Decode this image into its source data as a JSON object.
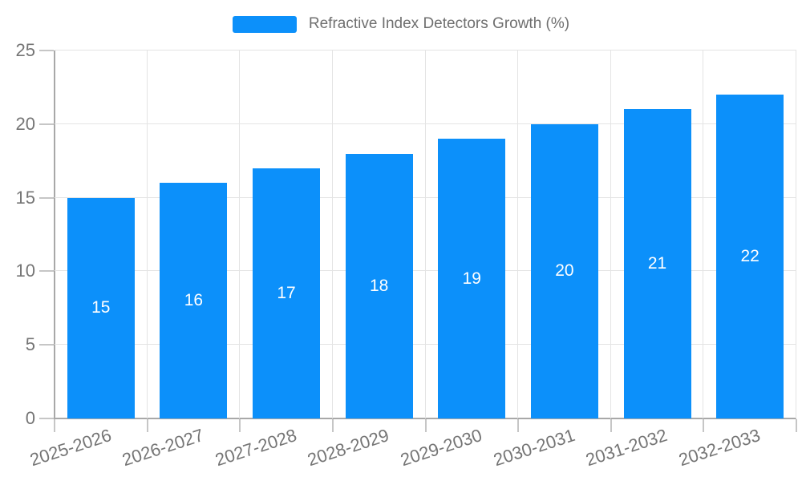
{
  "chart_data": {
    "type": "bar",
    "title": "Refractive Index Detectors Growth (%)",
    "categories": [
      "2025-2026",
      "2026-2027",
      "2027-2028",
      "2028-2029",
      "2029-2030",
      "2030-2031",
      "2031-2032",
      "2032-2033"
    ],
    "values": [
      15,
      16,
      17,
      18,
      19,
      20,
      21,
      22
    ],
    "xlabel": "",
    "ylabel": "",
    "ylim": [
      0,
      25
    ],
    "yticks": [
      0,
      5,
      10,
      15,
      20,
      25
    ],
    "grid": true,
    "legend_position": "top",
    "x_label_rotation_deg": -18,
    "colors": {
      "bar": "#0C90FA",
      "value_label": "#FFFFFF",
      "axis_text": "#757575",
      "legend_text": "#6F6F6F",
      "grid_line": "#E4E4E4",
      "axis_line": "#A8A8A8",
      "tick": "#C6C6C6",
      "background": "#FFFFFF"
    }
  }
}
